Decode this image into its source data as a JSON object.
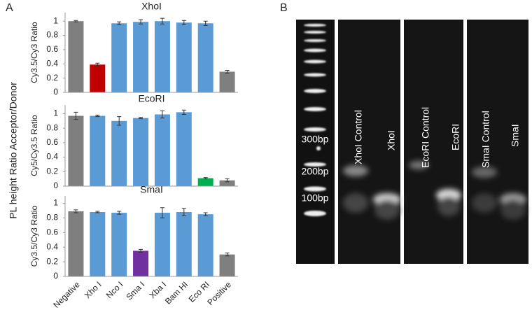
{
  "figure": {
    "panel_a": "A",
    "panel_b": "B",
    "shared_ylabel": "PL height Ratio Acceptor/Donor"
  },
  "chart_data": [
    {
      "type": "bar",
      "title": "XhoI",
      "ylabel": "Cy3.5/Cy3 Ratio",
      "values": [
        1.0,
        0.39,
        0.97,
        0.99,
        1.0,
        0.98,
        0.97,
        0.29
      ],
      "errors": [
        0.01,
        0.02,
        0.02,
        0.03,
        0.04,
        0.03,
        0.03,
        0.02
      ],
      "colors": [
        "#7f7f7f",
        "#c00000",
        "#5b9bd5",
        "#5b9bd5",
        "#5b9bd5",
        "#5b9bd5",
        "#5b9bd5",
        "#7f7f7f"
      ],
      "ylim": [
        0,
        1.12
      ],
      "yticks": [
        0,
        0.2,
        0.4,
        0.6,
        0.8,
        1
      ]
    },
    {
      "type": "bar",
      "title": "EcoRI",
      "ylabel": "Cy5/Cy3.5 Ratio",
      "values": [
        0.97,
        0.97,
        0.9,
        0.94,
        0.99,
        1.02,
        0.11,
        0.08
      ],
      "errors": [
        0.05,
        0.01,
        0.06,
        0.01,
        0.05,
        0.03,
        0.01,
        0.02
      ],
      "colors": [
        "#7f7f7f",
        "#5b9bd5",
        "#5b9bd5",
        "#5b9bd5",
        "#5b9bd5",
        "#5b9bd5",
        "#00b050",
        "#7f7f7f"
      ],
      "ylim": [
        0,
        1.12
      ],
      "yticks": [
        0,
        0.2,
        0.4,
        0.6,
        0.8,
        1
      ]
    },
    {
      "type": "bar",
      "title": "SmaI",
      "ylabel": "Cy3.5/Cy3 Ratio",
      "categories": [
        "Negative",
        "Xho I",
        "Nco I",
        "Sma I",
        "Xba I",
        "Bam HI",
        "Eco RI",
        "Positive"
      ],
      "values": [
        0.89,
        0.88,
        0.87,
        0.35,
        0.87,
        0.88,
        0.85,
        0.3
      ],
      "errors": [
        0.02,
        0.01,
        0.02,
        0.02,
        0.07,
        0.05,
        0.02,
        0.02
      ],
      "colors": [
        "#7f7f7f",
        "#5b9bd5",
        "#5b9bd5",
        "#7030a0",
        "#5b9bd5",
        "#5b9bd5",
        "#5b9bd5",
        "#7f7f7f"
      ],
      "ylim": [
        0,
        1.1
      ],
      "yticks": [
        0,
        0.2,
        0.4,
        0.6,
        0.8,
        1
      ]
    }
  ],
  "gel": {
    "ladder_labels": [
      "300bp",
      "200bp",
      "100bp"
    ],
    "lane_labels": [
      "XhoI Control",
      "XhoI",
      "EcoRI Control",
      "EcoRI",
      "SmaI Control",
      "SmaI"
    ]
  }
}
